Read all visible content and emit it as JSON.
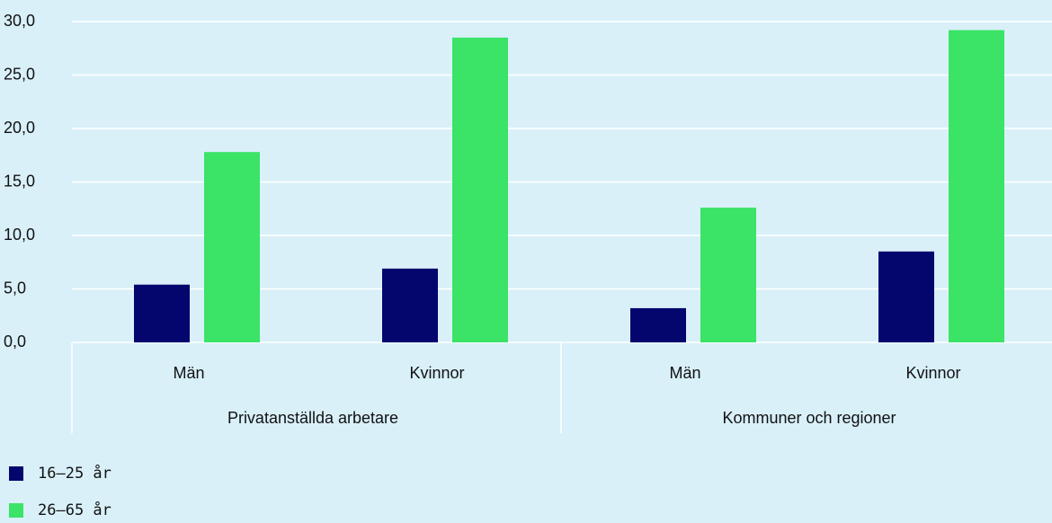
{
  "chart_data": {
    "type": "bar",
    "categories": [
      "Män",
      "Kvinnor",
      "Män",
      "Kvinnor"
    ],
    "groups": [
      "Privatanställda arbetare",
      "Kommuner och regioner"
    ],
    "series": [
      {
        "name": "16–25 år",
        "color": "#05056e",
        "values": [
          5.4,
          6.9,
          3.2,
          8.5
        ]
      },
      {
        "name": "26–65 år",
        "color": "#3be366",
        "values": [
          17.8,
          28.5,
          12.6,
          29.2
        ]
      }
    ],
    "ylim": [
      0,
      30
    ],
    "yticks": [
      {
        "value": 0,
        "label": "0,0"
      },
      {
        "value": 5,
        "label": "5,0"
      },
      {
        "value": 10,
        "label": "10,0"
      },
      {
        "value": 15,
        "label": "15,0"
      },
      {
        "value": 20,
        "label": "20,0"
      },
      {
        "value": 25,
        "label": "25,0"
      },
      {
        "value": 30,
        "label": "30,0"
      }
    ],
    "grid": true
  }
}
